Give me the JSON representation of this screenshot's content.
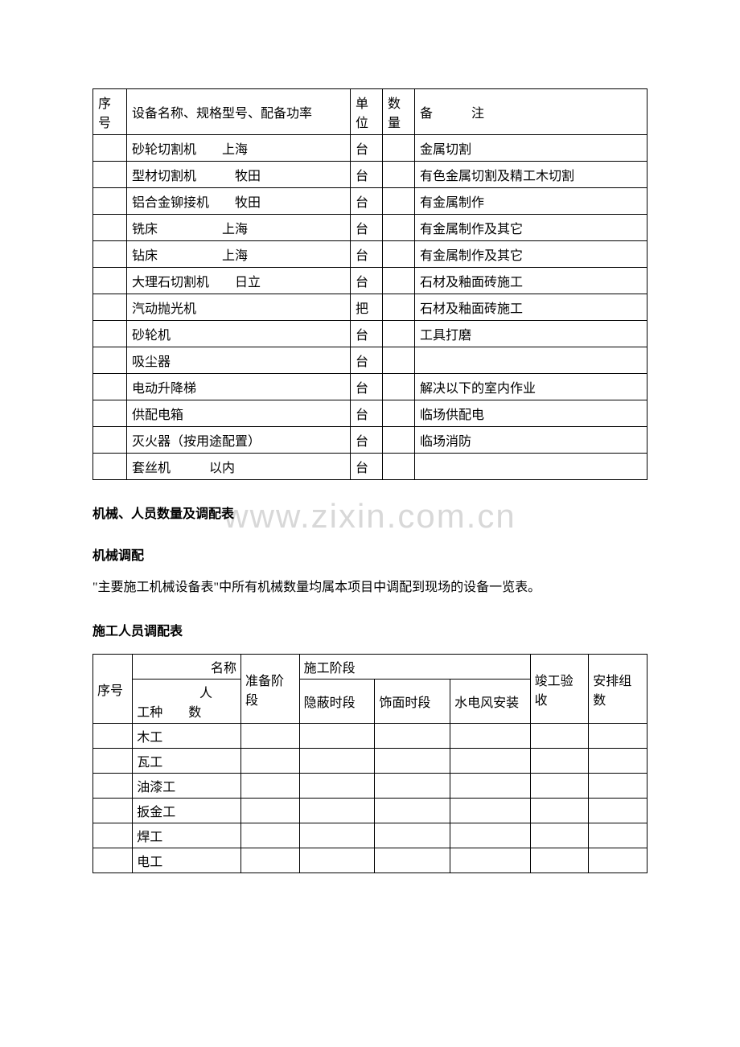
{
  "watermark": "www.zixin.com.cn",
  "table1": {
    "headers": {
      "seq": "序号",
      "name": "设备名称、规格型号、配备功率",
      "unit": "单位",
      "qty": "数量",
      "remark": "备　　　注"
    },
    "rows": [
      {
        "name": "砂轮切割机　　上海",
        "unit": "台",
        "remark": "金属切割"
      },
      {
        "name": "型材切割机　　　牧田",
        "unit": "台",
        "remark": "有色金属切割及精工木切割"
      },
      {
        "name": "铝合金铆接机　　牧田",
        "unit": "台",
        "remark": "有金属制作"
      },
      {
        "name": "铣床　　　　　上海",
        "unit": "台",
        "remark": "有金属制作及其它"
      },
      {
        "name": "钻床　　　　　上海",
        "unit": "台",
        "remark": "有金属制作及其它"
      },
      {
        "name": "大理石切割机　　日立",
        "unit": "台",
        "remark": "石材及釉面砖施工"
      },
      {
        "name": "汽动抛光机",
        "unit": "把",
        "remark": "石材及釉面砖施工"
      },
      {
        "name": "砂轮机",
        "unit": "台",
        "remark": "工具打磨"
      },
      {
        "name": "吸尘器",
        "unit": "台",
        "remark": ""
      },
      {
        "name": "电动升降梯",
        "unit": "台",
        "remark": "解决以下的室内作业"
      },
      {
        "name": "供配电箱",
        "unit": "台",
        "remark": "临场供配电"
      },
      {
        "name": "灭火器（按用途配置）",
        "unit": "台",
        "remark": "临场消防"
      },
      {
        "name": "套丝机　　　以内",
        "unit": "台",
        "remark": ""
      }
    ]
  },
  "headings": {
    "h1": "机械、人员数量及调配表",
    "h2": "机械调配",
    "h3": "施工人员调配表"
  },
  "paragraph1": "\"主要施工机械设备表\"中所有机械数量均属本项目中调配到现场的设备一览表。",
  "table2": {
    "headers": {
      "seq": "序号",
      "name_top": "名称",
      "name_bottom": "工种　　数",
      "name_diag": "人",
      "prep": "准备阶段",
      "phase": "施工阶段",
      "p1": "隐蔽时段",
      "p2": "饰面时段",
      "p3": "水电风安装",
      "done": "竣工验收",
      "group": "安排组数"
    },
    "rows": [
      {
        "name": "木工"
      },
      {
        "name": "瓦工"
      },
      {
        "name": "油漆工"
      },
      {
        "name": "扳金工"
      },
      {
        "name": "焊工"
      },
      {
        "name": "电工"
      }
    ]
  }
}
